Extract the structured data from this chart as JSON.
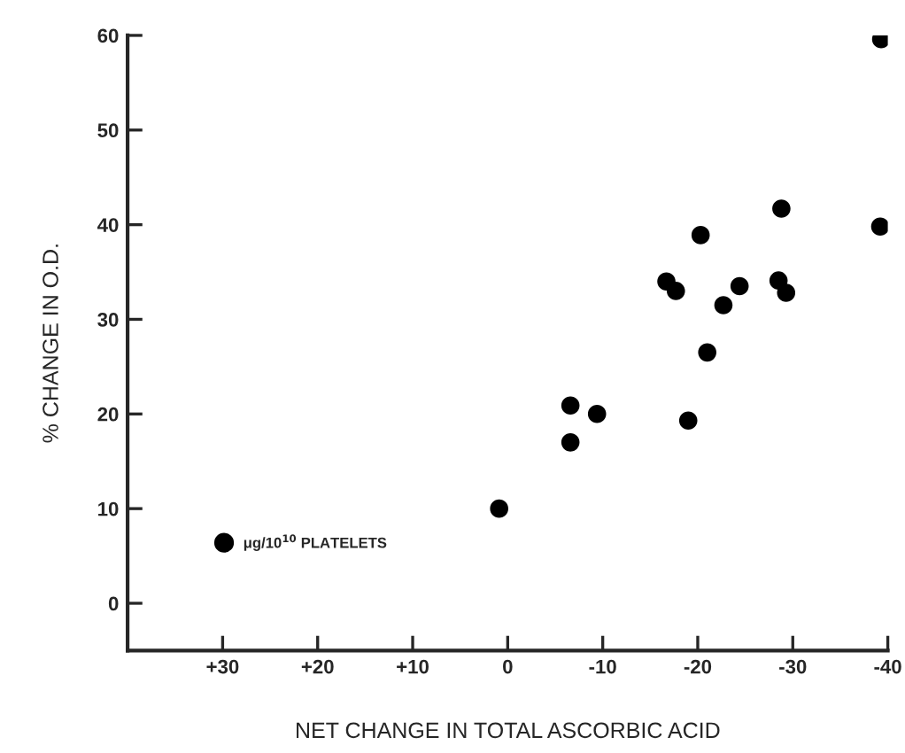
{
  "chart_data": {
    "type": "scatter",
    "xlabel": "NET CHANGE IN TOTAL ASCORBIC ACID",
    "ylabel": "% CHANGE IN O.D.",
    "xlim": [
      40,
      -40
    ],
    "ylim": [
      -5,
      60
    ],
    "xticks": [
      {
        "value": 30,
        "label": "+30"
      },
      {
        "value": 20,
        "label": "+20"
      },
      {
        "value": 10,
        "label": "+10"
      },
      0,
      {
        "value": -10,
        "label": "-10"
      },
      {
        "value": -20,
        "label": "-20"
      },
      {
        "value": -30,
        "label": "-30"
      },
      {
        "value": -40,
        "label": "-40"
      }
    ],
    "yticks": [
      0,
      10,
      20,
      30,
      40,
      50,
      60
    ],
    "marker": "circle",
    "grid": false,
    "legend": "bottom left",
    "series": [
      {
        "name": "μg/10$^{10}$ PLATELETS",
        "color": "#000000",
        "x": [
          -39.3,
          -39.2,
          -28.8,
          -20.3,
          -16.7,
          -17.7,
          -24.4,
          -22.7,
          -28.5,
          -29.3,
          -21.0,
          -6.6,
          -9.4,
          -6.6,
          -19.0,
          0.9
        ],
        "values": [
          59.6,
          39.8,
          41.7,
          38.9,
          34.0,
          33.0,
          33.5,
          31.5,
          34.1,
          32.8,
          26.5,
          20.9,
          20.0,
          17.0,
          19.3,
          10.0
        ]
      }
    ]
  }
}
